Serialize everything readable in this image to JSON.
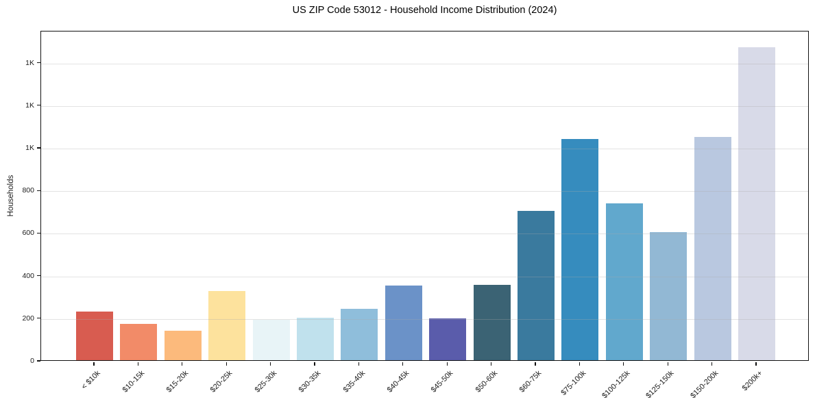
{
  "chart_data": {
    "type": "bar",
    "title": "US ZIP Code 53012 - Household Income Distribution (2024)",
    "xlabel": "",
    "ylabel": "Households",
    "categories": [
      "< $10k",
      "$10-15k",
      "$15-20k",
      "$20-25k",
      "$25-30k",
      "$30-35k",
      "$35-40k",
      "$40-45k",
      "$45-50k",
      "$50-60k",
      "$60-75k",
      "$75-100k",
      "$100-125k",
      "$125-150k",
      "$150-200k",
      "$200k+"
    ],
    "values": [
      228,
      170,
      140,
      325,
      190,
      200,
      240,
      350,
      195,
      355,
      700,
      1040,
      735,
      600,
      1050,
      1470
    ],
    "bar_colors": [
      "#d85c50",
      "#f28b68",
      "#fcba7c",
      "#fde29d",
      "#e8f4f7",
      "#c0e1ed",
      "#8fbedb",
      "#6b92c8",
      "#5a5cab",
      "#3b6374",
      "#3a7a9e",
      "#368cbe",
      "#61a8cd",
      "#92b8d4",
      "#b9c8e0",
      "#d8dae8"
    ],
    "ylim": [
      0,
      1550
    ],
    "yticks": [
      {
        "value": 0,
        "label": "0"
      },
      {
        "value": 200,
        "label": "200"
      },
      {
        "value": 400,
        "label": "400"
      },
      {
        "value": 600,
        "label": "600"
      },
      {
        "value": 800,
        "label": "800"
      },
      {
        "value": 1000,
        "label": "1K"
      },
      {
        "value": 1200,
        "label": "1K"
      },
      {
        "value": 1400,
        "label": "1K"
      }
    ],
    "grid": "horizontal",
    "legend": "none",
    "background": "#ffffff"
  }
}
